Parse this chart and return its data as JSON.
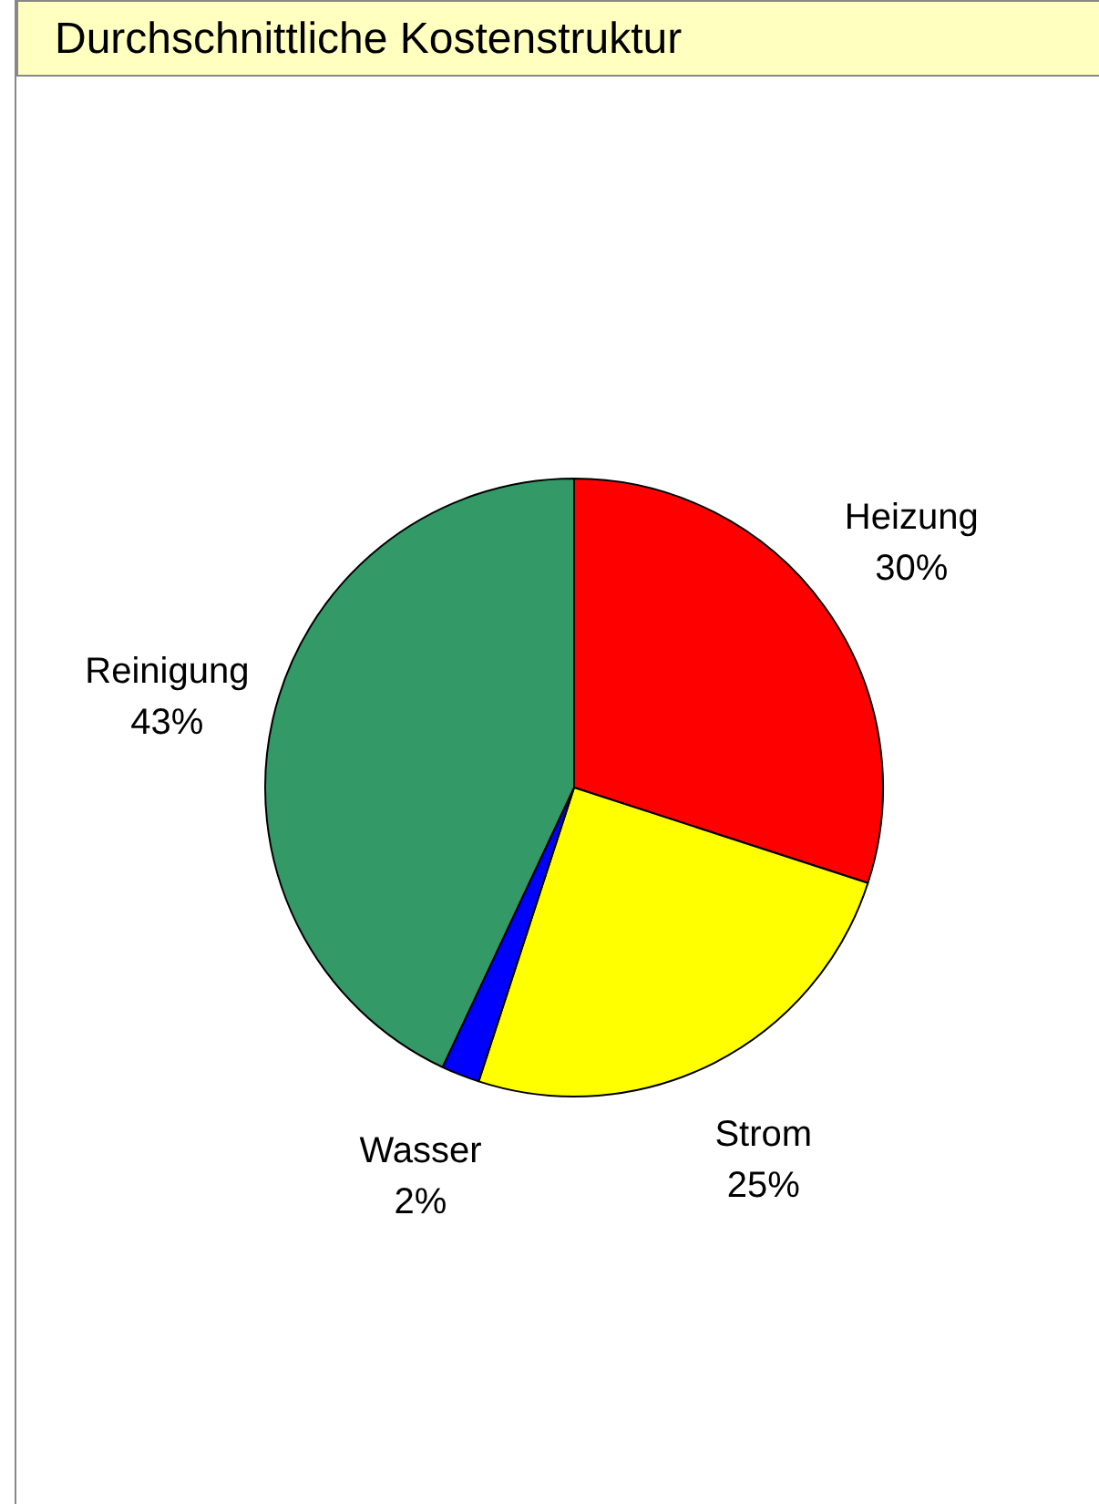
{
  "chart_data": {
    "type": "pie",
    "title": "Durchschnittliche Kostenstruktur",
    "categories": [
      "Heizung",
      "Strom",
      "Wasser",
      "Reinigung"
    ],
    "values": [
      30,
      25,
      2,
      43
    ],
    "value_labels": [
      "30%",
      "25%",
      "2%",
      "43%"
    ],
    "colors": [
      "#ff0000",
      "#ffff00",
      "#0000ff",
      "#339966"
    ],
    "legend": false
  }
}
